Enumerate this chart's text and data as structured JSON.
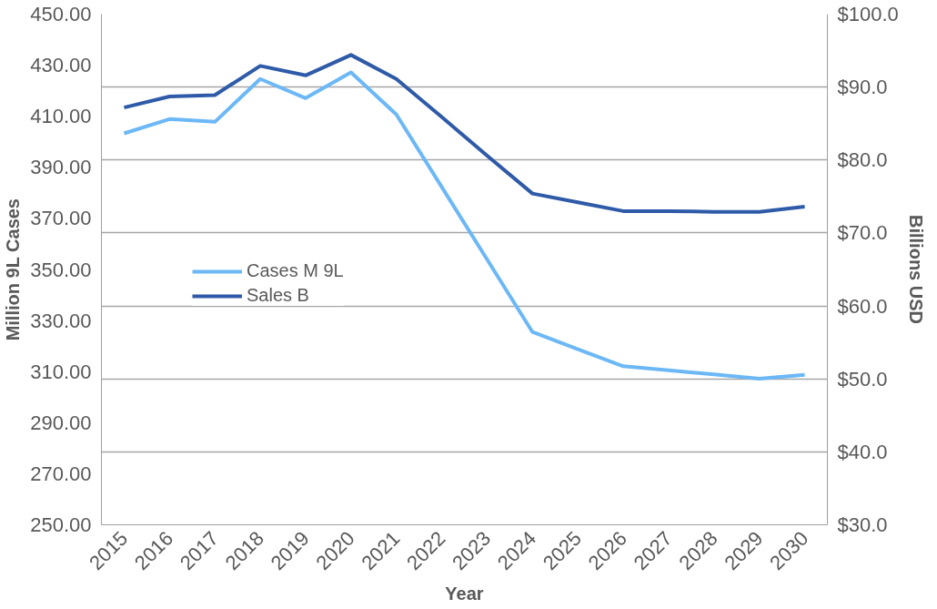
{
  "chart_data": {
    "type": "line",
    "xlabel": "Year",
    "ylabel": "Million 9L Cases",
    "y2label": "Billions USD",
    "categories": [
      "2015",
      "2016",
      "2017",
      "2018",
      "2019",
      "2020",
      "2021",
      "2022",
      "2023",
      "2024",
      "2025",
      "2026",
      "2027",
      "2028",
      "2029",
      "2030"
    ],
    "series": [
      {
        "name": "Cases M 9L",
        "color": "#6cb8f6",
        "values": [
          403.3,
          408.9,
          407.8,
          424.6,
          417.1,
          427.2,
          410.7,
          382.3,
          353.9,
          325.5,
          318.8,
          312.1,
          310.5,
          308.9,
          307.2,
          308.7
        ]
      },
      {
        "name": "Sales B",
        "color": "#2e5aa8",
        "axis": "y2",
        "values": [
          87.2,
          88.7,
          88.9,
          92.9,
          91.6,
          94.4,
          91.1,
          85.9,
          80.6,
          75.4,
          74.2,
          73.0,
          73.0,
          72.9,
          72.9,
          73.6
        ]
      }
    ],
    "ylim": [
      250,
      450
    ],
    "yticks": [
      {
        "value": 250,
        "label": "250.00"
      },
      {
        "value": 270,
        "label": "270.00"
      },
      {
        "value": 290,
        "label": "290.00"
      },
      {
        "value": 310,
        "label": "310.00"
      },
      {
        "value": 330,
        "label": "330.00"
      },
      {
        "value": 350,
        "label": "350.00"
      },
      {
        "value": 370,
        "label": "370.00"
      },
      {
        "value": 390,
        "label": "390.00"
      },
      {
        "value": 410,
        "label": "410.00"
      },
      {
        "value": 430,
        "label": "430.00"
      },
      {
        "value": 450,
        "label": "450.00"
      }
    ],
    "y2lim": [
      30,
      100
    ],
    "y2ticks": [
      {
        "value": 30,
        "label": "$30.0"
      },
      {
        "value": 40,
        "label": "$40.0"
      },
      {
        "value": 50,
        "label": "$50.0"
      },
      {
        "value": 60,
        "label": "$60.0"
      },
      {
        "value": 70,
        "label": "$70.0"
      },
      {
        "value": 80,
        "label": "$80.0"
      },
      {
        "value": 90,
        "label": "$90.0"
      },
      {
        "value": 100,
        "label": "$100.0"
      }
    ],
    "grid": "y2",
    "legend": "left",
    "marker": "none",
    "line_style": "solid"
  }
}
